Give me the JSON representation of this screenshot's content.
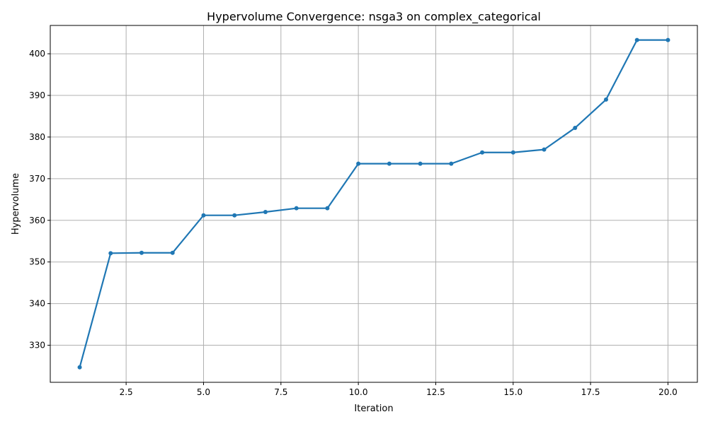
{
  "chart_data": {
    "type": "line",
    "title": "Hypervolume Convergence: nsga3 on complex_categorical",
    "xlabel": "Iteration",
    "ylabel": "Hypervolume",
    "xlim": [
      0.05,
      20.95
    ],
    "ylim": [
      321.1,
      406.8
    ],
    "xticks": [
      2.5,
      5.0,
      7.5,
      10.0,
      12.5,
      15.0,
      17.5,
      20.0
    ],
    "xtick_labels": [
      "2.5",
      "5.0",
      "7.5",
      "10.0",
      "12.5",
      "15.0",
      "17.5",
      "20.0"
    ],
    "yticks": [
      330,
      340,
      350,
      360,
      370,
      380,
      390,
      400
    ],
    "ytick_labels": [
      "330",
      "340",
      "350",
      "360",
      "370",
      "380",
      "390",
      "400"
    ],
    "grid": true,
    "series": [
      {
        "color": "#1f77b4",
        "marker": "circle",
        "x": [
          1,
          2,
          3,
          4,
          5,
          6,
          7,
          8,
          9,
          10,
          11,
          12,
          13,
          14,
          15,
          16,
          17,
          18,
          19,
          20
        ],
        "y": [
          324.7,
          352.1,
          352.2,
          352.2,
          361.2,
          361.2,
          362.0,
          362.9,
          362.9,
          373.6,
          373.6,
          373.6,
          373.6,
          376.3,
          376.3,
          377.0,
          382.2,
          389.0,
          403.3,
          403.3
        ]
      }
    ]
  }
}
